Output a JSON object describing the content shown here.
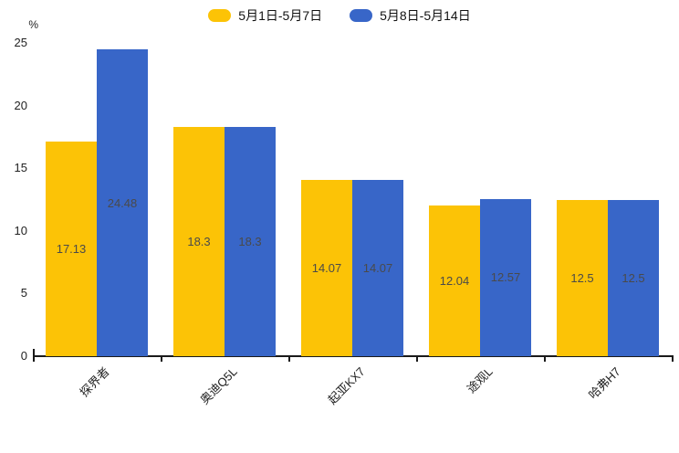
{
  "chart_data": {
    "type": "bar",
    "title": "",
    "ylabel": "%",
    "ylim": [
      0,
      25
    ],
    "yticks": [
      0,
      5,
      10,
      15,
      20,
      25
    ],
    "grid": false,
    "legend_position": "top-center",
    "value_labels": "inside-center",
    "x_tick_label_rotation": 45,
    "categories": [
      "探界者",
      "奥迪Q5L",
      "起亚KX7",
      "途观L",
      "哈弗H7"
    ],
    "series": [
      {
        "name": "5月1日-5月7日",
        "color": "#FCC306",
        "values": [
          17.13,
          18.3,
          14.07,
          12.04,
          12.5
        ]
      },
      {
        "name": "5月8日-5月14日",
        "color": "#3866C8",
        "values": [
          24.48,
          18.3,
          14.07,
          12.57,
          12.5
        ]
      }
    ],
    "colors": {
      "axis": "#1a1a1a",
      "tick_label": "#222222",
      "value_label": "#4a4a4a",
      "background": "#ffffff"
    }
  }
}
